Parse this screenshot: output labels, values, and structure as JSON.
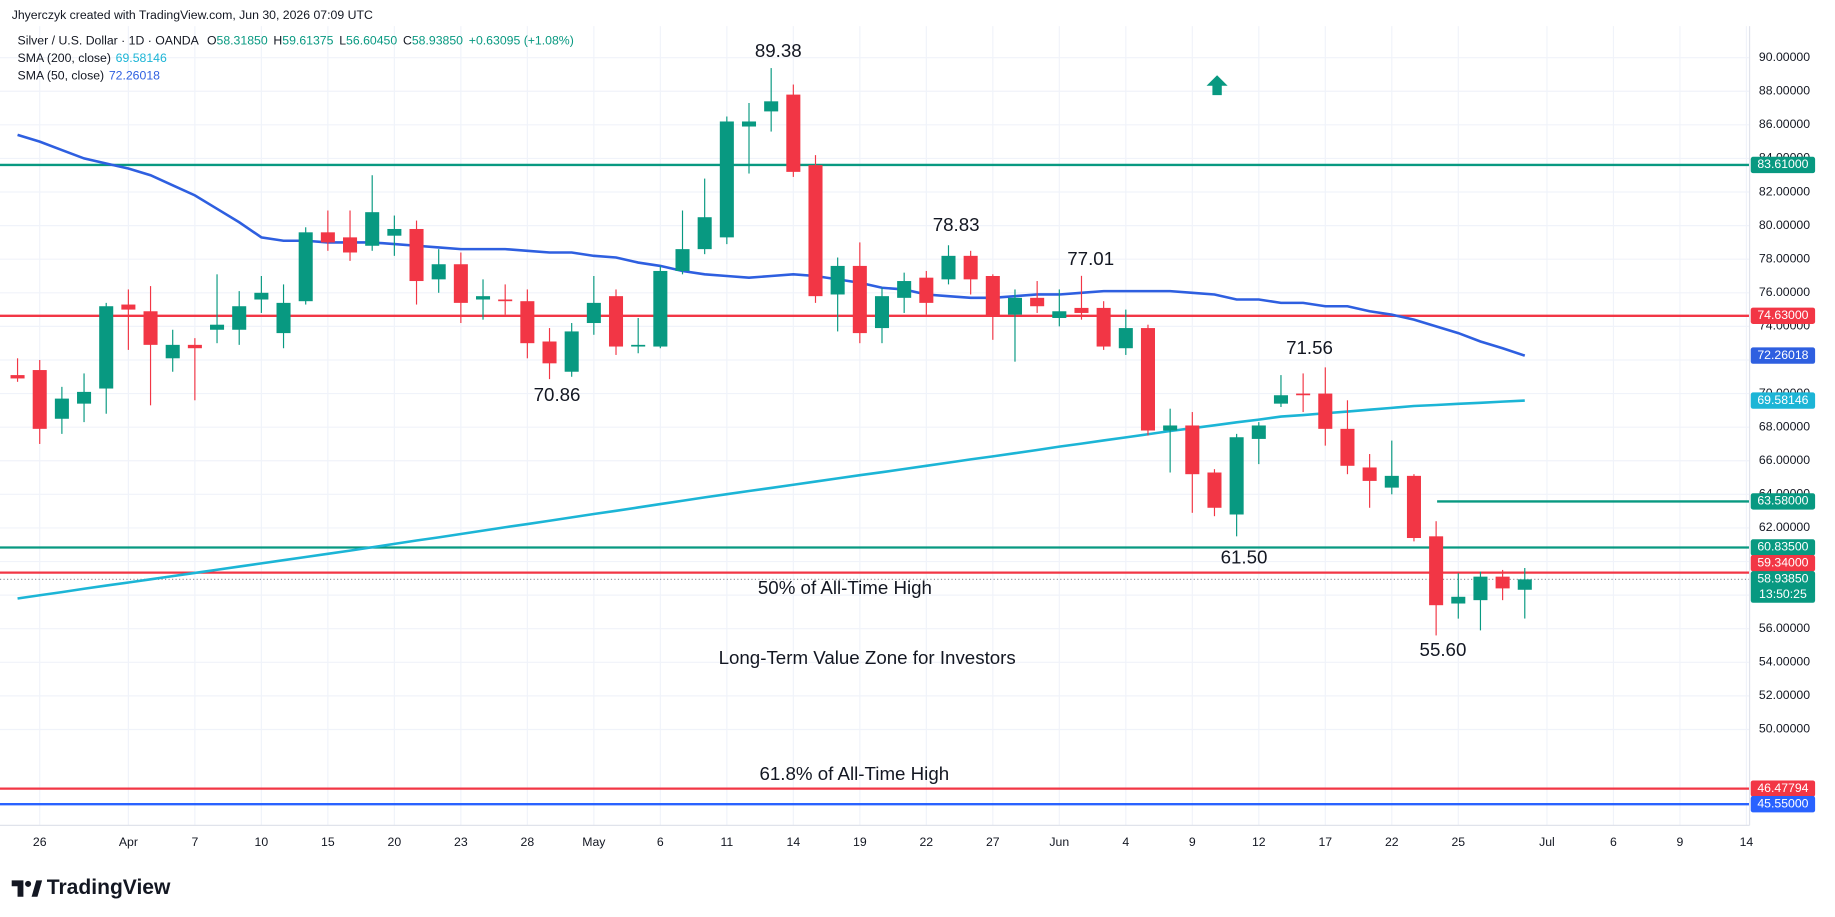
{
  "header": {
    "credit": "Jhyerczyk created with TradingView.com, Jun 30, 2026 07:09 UTC"
  },
  "footer": {
    "logo": "TradingView"
  },
  "chart_data": {
    "type": "candlestick",
    "legend": {
      "symbol": "Silver / U.S. Dollar · 1D · OANDA",
      "ohlc": [
        {
          "key": "O",
          "value": "58.31850"
        },
        {
          "key": "H",
          "value": "59.61375"
        },
        {
          "key": "L",
          "value": "56.60450"
        },
        {
          "key": "C",
          "value": "58.93850"
        }
      ],
      "change": "+0.63095 (+1.08%)"
    },
    "categories": [
      null,
      "26",
      null,
      null,
      null,
      "Apr",
      null,
      null,
      "7",
      null,
      null,
      "10",
      null,
      null,
      "15",
      null,
      null,
      "20",
      null,
      null,
      "23",
      null,
      null,
      "28",
      null,
      null,
      "May",
      null,
      null,
      "6",
      null,
      null,
      "11",
      null,
      null,
      "14",
      null,
      null,
      "19",
      null,
      null,
      "22",
      null,
      null,
      "27",
      null,
      null,
      "Jun",
      null,
      null,
      "4",
      null,
      null,
      "9",
      null,
      null,
      "12",
      null,
      null,
      "17",
      null,
      null,
      "22",
      null,
      null,
      "25",
      null,
      null,
      null,
      "Jul",
      null,
      null,
      "6",
      null,
      null,
      "9",
      null,
      null,
      "14"
    ],
    "open": [
      71.1,
      71.4,
      68.5,
      69.4,
      70.3,
      75.3,
      74.9,
      72.1,
      72.9,
      73.8,
      73.8,
      75.6,
      73.6,
      75.5,
      79.6,
      79.3,
      78.8,
      79.4,
      79.8,
      76.8,
      77.7,
      75.6,
      75.6,
      75.5,
      73.1,
      71.3,
      74.2,
      75.8,
      72.8,
      72.8,
      77.3,
      78.6,
      79.3,
      85.9,
      86.8,
      87.8,
      83.6,
      75.9,
      77.6,
      73.9,
      75.7,
      76.9,
      76.8,
      78.2,
      77.0,
      74.7,
      75.7,
      74.5,
      75.1,
      75.1,
      72.7,
      73.9,
      67.8,
      68.1,
      65.3,
      62.8,
      67.3,
      69.4,
      70.0,
      70.0,
      67.9,
      65.6,
      64.4,
      65.1,
      61.5,
      57.5,
      57.7,
      59.1,
      58.3185,
      null,
      null,
      null,
      null,
      null,
      null,
      null,
      null,
      null,
      null
    ],
    "high": [
      72.1,
      72.0,
      70.4,
      71.2,
      75.4,
      76.2,
      76.4,
      73.8,
      73.3,
      77.1,
      76.1,
      77.0,
      76.5,
      79.9,
      80.9,
      80.9,
      83.0,
      80.6,
      80.3,
      78.6,
      78.4,
      76.8,
      76.5,
      76.2,
      73.9,
      74.2,
      77.0,
      76.2,
      74.5,
      77.6,
      80.9,
      82.8,
      86.5,
      87.3,
      89.38,
      88.4,
      84.2,
      78.1,
      79.0,
      76.3,
      77.2,
      77.3,
      78.83,
      78.5,
      77.1,
      76.2,
      76.7,
      76.2,
      77.01,
      75.5,
      75.0,
      74.1,
      69.1,
      68.9,
      65.5,
      67.6,
      68.3,
      71.1,
      71.2,
      71.56,
      69.6,
      66.4,
      67.2,
      65.2,
      62.4,
      59.3,
      59.4,
      59.5,
      59.61375,
      null,
      null,
      null,
      null,
      null,
      null,
      null,
      null,
      null,
      null
    ],
    "low": [
      70.7,
      67.0,
      67.6,
      68.3,
      68.8,
      72.6,
      69.3,
      71.3,
      69.6,
      73.0,
      72.9,
      74.8,
      72.7,
      75.3,
      78.5,
      77.9,
      78.5,
      78.2,
      75.3,
      76.0,
      74.2,
      74.4,
      74.7,
      72.1,
      70.86,
      71.0,
      73.5,
      72.3,
      72.4,
      72.7,
      77.1,
      78.3,
      78.9,
      83.1,
      85.6,
      82.9,
      75.4,
      73.7,
      73.0,
      73.0,
      74.8,
      74.7,
      76.5,
      75.9,
      73.2,
      71.9,
      74.8,
      74.0,
      74.4,
      72.6,
      72.3,
      67.5,
      65.3,
      62.9,
      62.7,
      61.5,
      65.8,
      69.2,
      68.9,
      66.9,
      65.2,
      63.2,
      64.0,
      61.2,
      55.6,
      56.6,
      55.9,
      57.7,
      56.6045,
      null,
      null,
      null,
      null,
      null,
      null,
      null,
      null,
      null,
      null
    ],
    "close": [
      70.9,
      67.9,
      69.7,
      70.1,
      75.2,
      75.0,
      72.9,
      72.9,
      72.7,
      74.1,
      75.2,
      76.0,
      75.4,
      79.6,
      79.0,
      78.4,
      80.8,
      79.8,
      76.7,
      77.7,
      75.4,
      75.8,
      75.5,
      73.0,
      71.8,
      73.7,
      75.4,
      72.8,
      72.9,
      77.3,
      78.6,
      80.5,
      86.2,
      86.2,
      87.4,
      83.2,
      75.8,
      77.6,
      73.6,
      75.8,
      76.7,
      75.4,
      78.2,
      76.8,
      74.6,
      75.7,
      75.2,
      74.9,
      74.8,
      72.8,
      73.9,
      67.8,
      68.1,
      65.2,
      63.2,
      67.4,
      68.1,
      69.9,
      69.9,
      67.9,
      65.7,
      64.8,
      65.1,
      61.4,
      57.4,
      57.9,
      59.1,
      58.4,
      58.9385,
      null,
      null,
      null,
      null,
      null,
      null,
      null,
      null,
      null,
      null
    ],
    "up_color": "#089981",
    "down_color": "#f23645",
    "series": [
      {
        "name": "SMA (200, close)",
        "color": "#1cb5d6",
        "last_label": "69.58146",
        "values": [
          57.8,
          57.99,
          58.18,
          58.38,
          58.57,
          58.75,
          58.94,
          59.13,
          59.32,
          59.51,
          59.7,
          59.89,
          60.08,
          60.27,
          60.46,
          60.65,
          60.85,
          61.05,
          61.25,
          61.44,
          61.64,
          61.84,
          62.04,
          62.23,
          62.43,
          62.63,
          62.83,
          63.02,
          63.22,
          63.42,
          63.62,
          63.82,
          64.01,
          64.2,
          64.38,
          64.57,
          64.76,
          64.95,
          65.14,
          65.32,
          65.51,
          65.7,
          65.89,
          66.08,
          66.26,
          66.45,
          66.64,
          66.84,
          67.02,
          67.21,
          67.39,
          67.58,
          67.77,
          67.94,
          68.11,
          68.29,
          68.45,
          68.63,
          68.72,
          68.83,
          68.93,
          69.04,
          69.15,
          69.26,
          69.32,
          69.39,
          69.45,
          69.52,
          69.58146,
          null,
          null,
          null,
          null,
          null,
          null,
          null,
          null,
          null,
          null
        ]
      },
      {
        "name": "SMA (50, close)",
        "color": "#2e5fe0",
        "last_label": "72.26018",
        "values": [
          85.4,
          85.0,
          84.5,
          84.0,
          83.7,
          83.4,
          83.0,
          82.4,
          81.8,
          81.0,
          80.2,
          79.3,
          79.1,
          79.1,
          79.0,
          79.0,
          79.0,
          78.9,
          78.8,
          78.7,
          78.6,
          78.6,
          78.6,
          78.5,
          78.4,
          78.4,
          78.2,
          78.1,
          77.8,
          77.6,
          77.3,
          77.1,
          77.0,
          76.9,
          77.0,
          77.1,
          77.0,
          76.8,
          76.6,
          76.3,
          76.2,
          75.9,
          75.8,
          75.7,
          75.7,
          75.8,
          75.9,
          75.9,
          76.0,
          76.1,
          76.1,
          76.1,
          76.1,
          76.0,
          75.9,
          75.6,
          75.6,
          75.4,
          75.4,
          75.2,
          75.2,
          74.9,
          74.7,
          74.4,
          74.0,
          73.6,
          73.1,
          72.7,
          72.26018,
          null,
          null,
          null,
          null,
          null,
          null,
          null,
          null,
          null,
          null
        ]
      }
    ],
    "levels": [
      {
        "value": 83.61,
        "label": "83.61000",
        "color": "#089981"
      },
      {
        "value": 74.63,
        "label": "74.63000",
        "color": "#f23645"
      },
      {
        "value": 63.58,
        "label": "63.58000",
        "color": "#089981"
      },
      {
        "value": 60.835,
        "label": "60.83500",
        "color": "#089981"
      },
      {
        "value": 59.34,
        "label": "59.34000",
        "color": "#f23645"
      },
      {
        "value": 46.47794,
        "label": "46.47794",
        "color": "#f23645"
      },
      {
        "value": 45.55,
        "label": "45.55000",
        "color": "#2962ff"
      }
    ],
    "price_badge": {
      "value": 58.9385,
      "label": "58.93850",
      "countdown": "13:50:25",
      "color": "#089981"
    },
    "annotations": [
      "89.38",
      "78.83",
      "77.01",
      "70.86",
      "71.56",
      "61.50",
      "55.60",
      "50% of All-Time High",
      "Long-Term Value Zone for Investors",
      "61.8% of All-Time High"
    ],
    "ylim": [
      44.29,
      91.88
    ],
    "yticks": [
      {
        "value": 50,
        "label": "50.00000"
      },
      {
        "value": 52,
        "label": "52.00000"
      },
      {
        "value": 54,
        "label": "54.00000"
      },
      {
        "value": 56,
        "label": "56.00000"
      },
      {
        "value": 58,
        "label": "58.00000"
      },
      {
        "value": 60,
        "label": "60.00000"
      },
      {
        "value": 62,
        "label": "62.00000"
      },
      {
        "value": 64,
        "label": "64.00000"
      },
      {
        "value": 66,
        "label": "66.00000"
      },
      {
        "value": 68,
        "label": "68.00000"
      },
      {
        "value": 70,
        "label": "70.00000"
      },
      {
        "value": 72,
        "label": "72.00000"
      },
      {
        "value": 74,
        "label": "74.00000"
      },
      {
        "value": 76,
        "label": "76.00000"
      },
      {
        "value": 78,
        "label": "78.00000"
      },
      {
        "value": 80,
        "label": "80.00000"
      },
      {
        "value": 82,
        "label": "82.00000"
      },
      {
        "value": 84,
        "label": "84.00000"
      },
      {
        "value": 86,
        "label": "86.00000"
      },
      {
        "value": 88,
        "label": "88.00000"
      },
      {
        "value": 90,
        "label": "90.00000"
      }
    ],
    "grid": true
  }
}
